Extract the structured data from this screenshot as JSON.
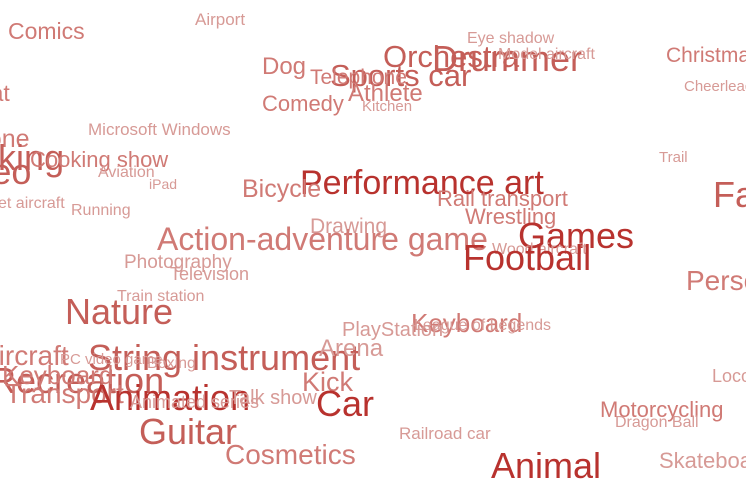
{
  "cloud": {
    "colors": {
      "light": "#d79a96",
      "soft": "#d07a75",
      "mid": "#c45e58",
      "strong": "#b8322e"
    },
    "words": [
      {
        "id": "airport",
        "text": "Airport",
        "weight": 1,
        "tone": "light"
      },
      {
        "id": "comics",
        "text": "Comics",
        "weight": 2,
        "tone": "soft"
      },
      {
        "id": "eye-shadow",
        "text": "Eye shadow",
        "weight": 1,
        "tone": "light"
      },
      {
        "id": "dog",
        "text": "Dog",
        "weight": 2,
        "tone": "soft"
      },
      {
        "id": "orchestra",
        "text": "Orchestra",
        "weight": 3,
        "tone": "mid"
      },
      {
        "id": "drummer",
        "text": "Drummer",
        "weight": 3,
        "tone": "mid"
      },
      {
        "id": "model-aircraft",
        "text": "Model aircraft",
        "weight": 1,
        "tone": "light"
      },
      {
        "id": "christmas",
        "text": "Christmas",
        "weight": 2,
        "tone": "soft"
      },
      {
        "id": "sports-car",
        "text": "Sports car",
        "weight": 3,
        "tone": "mid"
      },
      {
        "id": "telephone",
        "text": "Telephone",
        "weight": 2,
        "tone": "soft"
      },
      {
        "id": "athlete",
        "text": "Athlete",
        "weight": 2,
        "tone": "soft"
      },
      {
        "id": "cheerleading",
        "text": "Cheerleading",
        "weight": 1,
        "tone": "light"
      },
      {
        "id": "hat",
        "text": "Hat",
        "weight": 2,
        "tone": "soft"
      },
      {
        "id": "comedy",
        "text": "Comedy",
        "weight": 2,
        "tone": "soft"
      },
      {
        "id": "kitchen",
        "text": "Kitchen",
        "weight": 1,
        "tone": "light"
      },
      {
        "id": "microsoft-windows",
        "text": "Microsoft Windows",
        "weight": 1,
        "tone": "light"
      },
      {
        "id": "phone",
        "text": "phone",
        "weight": 2,
        "tone": "soft"
      },
      {
        "id": "cooking",
        "text": "cooking",
        "weight": 3,
        "tone": "mid"
      },
      {
        "id": "cooking-show",
        "text": "Cooking show",
        "weight": 2,
        "tone": "soft"
      },
      {
        "id": "trail",
        "text": "Trail",
        "weight": 1,
        "tone": "light"
      },
      {
        "id": "video",
        "text": "Video",
        "weight": 3,
        "tone": "mid"
      },
      {
        "id": "aviation",
        "text": "Aviation",
        "weight": 1,
        "tone": "light"
      },
      {
        "id": "ipad",
        "text": "iPad",
        "weight": 1,
        "tone": "light"
      },
      {
        "id": "performance-art",
        "text": "Performance art",
        "weight": 3,
        "tone": "strong"
      },
      {
        "id": "fashion",
        "text": "Fashion",
        "weight": 3,
        "tone": "mid"
      },
      {
        "id": "bicycle",
        "text": "Bicycle",
        "weight": 2,
        "tone": "soft"
      },
      {
        "id": "rail-transport",
        "text": "Rail transport",
        "weight": 2,
        "tone": "soft"
      },
      {
        "id": "jet-aircraft",
        "text": "Jet aircraft",
        "weight": 1,
        "tone": "light"
      },
      {
        "id": "running",
        "text": "Running",
        "weight": 1,
        "tone": "light"
      },
      {
        "id": "wrestling",
        "text": "Wrestling",
        "weight": 2,
        "tone": "soft"
      },
      {
        "id": "drawing",
        "text": "Drawing",
        "weight": 2,
        "tone": "light"
      },
      {
        "id": "action-adventure-game",
        "text": "Action-adventure game",
        "weight": 3,
        "tone": "soft"
      },
      {
        "id": "games",
        "text": "Games",
        "weight": 3,
        "tone": "strong"
      },
      {
        "id": "wood-aircraft",
        "text": "Wood aircraft",
        "weight": 1,
        "tone": "light"
      },
      {
        "id": "football",
        "text": "Football",
        "weight": 3,
        "tone": "strong"
      },
      {
        "id": "photography",
        "text": "Photography",
        "weight": 2,
        "tone": "light"
      },
      {
        "id": "television",
        "text": "Television",
        "weight": 1,
        "tone": "light"
      },
      {
        "id": "person",
        "text": "Person",
        "weight": 3,
        "tone": "soft"
      },
      {
        "id": "train-station",
        "text": "Train station",
        "weight": 1,
        "tone": "light"
      },
      {
        "id": "nature",
        "text": "Nature",
        "weight": 3,
        "tone": "mid"
      },
      {
        "id": "keyboard",
        "text": "Keyboard",
        "weight": 2,
        "tone": "soft"
      },
      {
        "id": "playstation",
        "text": "PlayStation",
        "weight": 2,
        "tone": "light"
      },
      {
        "id": "league-of-legends",
        "text": "League of Legends",
        "weight": 1,
        "tone": "light"
      },
      {
        "id": "aircraft",
        "text": "Aircraft",
        "weight": 2,
        "tone": "soft"
      },
      {
        "id": "string-instrument",
        "text": "String instrument",
        "weight": 3,
        "tone": "mid"
      },
      {
        "id": "arena",
        "text": "Arena",
        "weight": 2,
        "tone": "light"
      },
      {
        "id": "pc-video-game",
        "text": "PC video game",
        "weight": 1,
        "tone": "light"
      },
      {
        "id": "boxing",
        "text": "Boxing",
        "weight": 1,
        "tone": "light"
      },
      {
        "id": "recreation",
        "text": "Recreation",
        "weight": 3,
        "tone": "mid"
      },
      {
        "id": "keyboard-2",
        "text": "Keyboard",
        "weight": 2,
        "tone": "soft"
      },
      {
        "id": "kick",
        "text": "Kick",
        "weight": 2,
        "tone": "soft"
      },
      {
        "id": "locomotive",
        "text": "Locomotive",
        "weight": 1,
        "tone": "light"
      },
      {
        "id": "transport",
        "text": "Transport",
        "weight": 2,
        "tone": "soft"
      },
      {
        "id": "animation",
        "text": "Animation",
        "weight": 3,
        "tone": "strong"
      },
      {
        "id": "animated-series",
        "text": "Animated series",
        "weight": 1,
        "tone": "light"
      },
      {
        "id": "talk-show",
        "text": "Talk show",
        "weight": 2,
        "tone": "light"
      },
      {
        "id": "car",
        "text": "Car",
        "weight": 3,
        "tone": "strong"
      },
      {
        "id": "motorcycling",
        "text": "Motorcycling",
        "weight": 2,
        "tone": "soft"
      },
      {
        "id": "dragon-ball",
        "text": "Dragon Ball",
        "weight": 1,
        "tone": "light"
      },
      {
        "id": "railroad-car",
        "text": "Railroad car",
        "weight": 1,
        "tone": "light"
      },
      {
        "id": "guitar",
        "text": "Guitar",
        "weight": 3,
        "tone": "mid"
      },
      {
        "id": "cosmetics",
        "text": "Cosmetics",
        "weight": 2,
        "tone": "soft"
      },
      {
        "id": "animal",
        "text": "Animal",
        "weight": 3,
        "tone": "strong"
      },
      {
        "id": "skateboarding",
        "text": "Skateboarding",
        "weight": 2,
        "tone": "light"
      }
    ]
  }
}
